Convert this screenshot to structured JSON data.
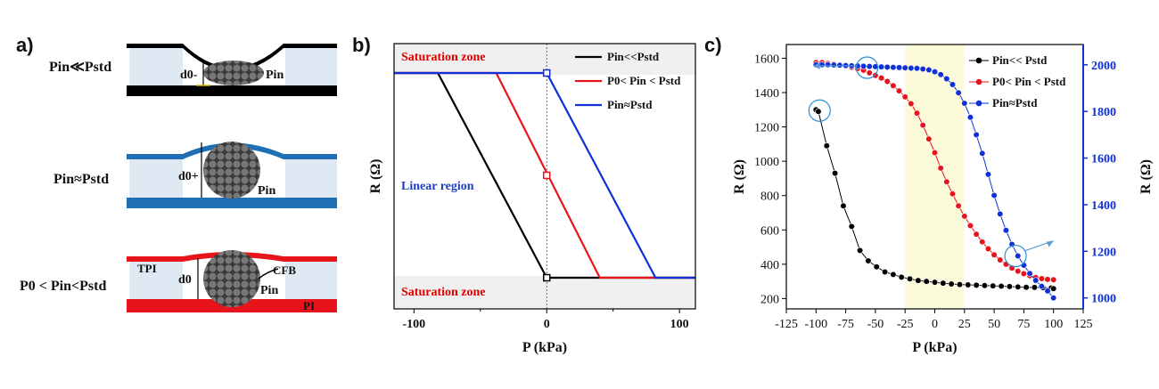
{
  "panels": {
    "a_label": "a)",
    "b_label": "b)",
    "c_label": "c)"
  },
  "panel_a": {
    "rows": [
      {
        "condition": "Pin≪Pstd",
        "d_label": "d0-",
        "p_label": "Pin",
        "color": "#000000"
      },
      {
        "condition": "Pin≈Pstd",
        "d_label": "d0+",
        "p_label": "Pin",
        "color": "#1f6fb5"
      },
      {
        "condition": "P0 < Pin<Pstd",
        "d_label": "d0",
        "p_label": "Pin",
        "color": "#e8141b"
      }
    ],
    "tpi_label": "TPI",
    "cfb_label": "CFB",
    "pi_label": "PI"
  },
  "chart_data": [
    {
      "type": "line",
      "panel": "b",
      "xlabel": "P (kPa)",
      "ylabel": "R (Ω)",
      "xlim": [
        -115,
        112
      ],
      "xticks": [
        -100,
        0,
        100
      ],
      "annotations": [
        "Saturation zone",
        "Linear region",
        "Saturation zone"
      ],
      "series": [
        {
          "name": "Pin<<Pstd",
          "color": "#000000",
          "x": [
            -115,
            -82,
            0,
            112
          ],
          "y": [
            1,
            1,
            0,
            0
          ]
        },
        {
          "name": "P0< Pin < Pstd",
          "color": "#e8141b",
          "x": [
            -115,
            -38,
            40,
            112
          ],
          "y": [
            1,
            1,
            0,
            0
          ]
        },
        {
          "name": "Pin≈Pstd",
          "color": "#1030d8",
          "x": [
            -115,
            0,
            82,
            112
          ],
          "y": [
            1,
            1,
            0,
            0
          ]
        }
      ],
      "markers": [
        {
          "x": 0,
          "y": 1,
          "color": "#1030d8"
        },
        {
          "x": 0,
          "y": 0.5,
          "color": "#e8141b"
        },
        {
          "x": 0,
          "y": 0,
          "color": "#000000"
        }
      ],
      "legend_position": "top-right"
    },
    {
      "type": "scatter",
      "panel": "c",
      "xlabel": "P (kPa)",
      "ylabel": "R (Ω)",
      "ylabel_right": "R (Ω)",
      "xlim": [
        -125,
        125
      ],
      "ylim": [
        140,
        1680
      ],
      "ylim_right": [
        953,
        2087
      ],
      "xticks": [
        -125,
        -100,
        -75,
        -50,
        -25,
        0,
        25,
        50,
        75,
        100,
        125
      ],
      "yticks": [
        200,
        400,
        600,
        800,
        1000,
        1200,
        1400,
        1600
      ],
      "yticks_right": [
        1000,
        1200,
        1400,
        1600,
        1800,
        2000
      ],
      "highlight_band": [
        -25,
        25
      ],
      "series": [
        {
          "name": "Pin<< Pstd",
          "color": "#000000",
          "axis": "left",
          "x": [
            -100,
            -98,
            -91,
            -84,
            -77,
            -70,
            -63,
            -56,
            -49,
            -42,
            -35,
            -28,
            -21,
            -14,
            -7,
            0,
            7,
            14,
            21,
            28,
            35,
            42,
            49,
            56,
            63,
            70,
            77,
            84,
            91,
            98,
            100
          ],
          "y": [
            1300,
            1290,
            1090,
            930,
            740,
            620,
            480,
            420,
            385,
            355,
            340,
            325,
            315,
            305,
            300,
            295,
            290,
            285,
            282,
            280,
            278,
            276,
            274,
            272,
            270,
            268,
            266,
            265,
            264,
            262,
            258
          ]
        },
        {
          "name": "P0< Pin < Pstd",
          "color": "#e8141b",
          "axis": "left",
          "x": [
            -100,
            -95,
            -90,
            -85,
            -80,
            -75,
            -70,
            -65,
            -60,
            -55,
            -50,
            -45,
            -40,
            -35,
            -30,
            -25,
            -20,
            -15,
            -10,
            -5,
            0,
            5,
            10,
            15,
            20,
            25,
            30,
            35,
            40,
            45,
            50,
            55,
            60,
            65,
            70,
            75,
            80,
            85,
            90,
            95,
            100
          ],
          "y": [
            1575,
            1575,
            1570,
            1565,
            1560,
            1555,
            1548,
            1540,
            1530,
            1515,
            1500,
            1485,
            1465,
            1440,
            1410,
            1375,
            1335,
            1280,
            1210,
            1130,
            1050,
            960,
            880,
            810,
            740,
            680,
            625,
            575,
            530,
            490,
            455,
            425,
            400,
            378,
            360,
            345,
            333,
            323,
            316,
            312,
            310
          ]
        },
        {
          "name": "Pin≈Pstd",
          "color": "#1030d8",
          "axis": "right",
          "x": [
            -100,
            -95,
            -90,
            -85,
            -80,
            -75,
            -70,
            -65,
            -60,
            -55,
            -50,
            -45,
            -40,
            -35,
            -30,
            -25,
            -20,
            -15,
            -10,
            -5,
            0,
            5,
            10,
            15,
            20,
            25,
            30,
            35,
            40,
            45,
            50,
            55,
            60,
            65,
            70,
            75,
            80,
            85,
            90,
            95,
            100
          ],
          "y": [
            2000,
            2000,
            2000,
            1999,
            1998,
            1997,
            1996,
            1995,
            1994,
            1993,
            1992,
            1991,
            1990,
            1989,
            1988,
            1987,
            1986,
            1985,
            1982,
            1978,
            1970,
            1958,
            1940,
            1915,
            1880,
            1835,
            1775,
            1700,
            1620,
            1530,
            1440,
            1360,
            1290,
            1230,
            1180,
            1140,
            1105,
            1075,
            1050,
            1030,
            1000
          ]
        }
      ],
      "legend_position": "top-right"
    }
  ]
}
